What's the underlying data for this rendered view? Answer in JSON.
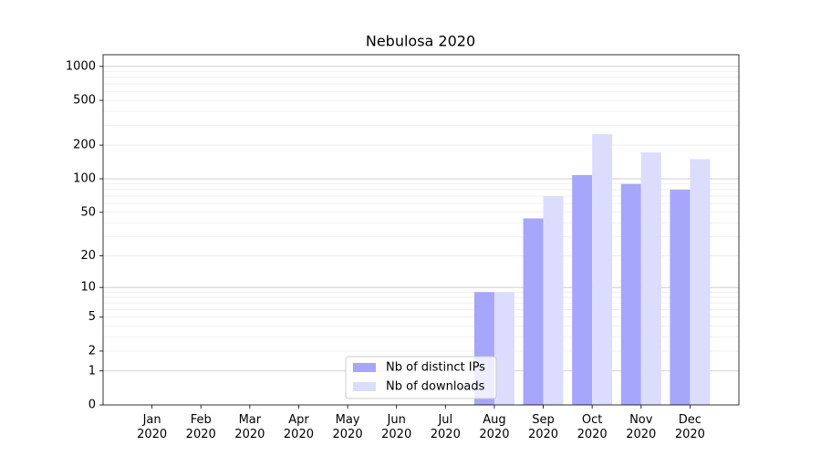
{
  "chart_data": {
    "type": "bar",
    "title": "Nebulosa 2020",
    "categories": [
      "Jan\n2020",
      "Feb\n2020",
      "Mar\n2020",
      "Apr\n2020",
      "May\n2020",
      "Jun\n2020",
      "Jul\n2020",
      "Aug\n2020",
      "Sep\n2020",
      "Oct\n2020",
      "Nov\n2020",
      "Dec\n2020"
    ],
    "series": [
      {
        "name": "Nb of distinct IPs",
        "color": "#a6a6fa",
        "values": [
          0,
          0,
          0,
          0,
          0,
          0,
          0,
          9,
          44,
          108,
          90,
          80
        ]
      },
      {
        "name": "Nb of downloads",
        "color": "#dcdcfd",
        "values": [
          0,
          0,
          0,
          0,
          0,
          0,
          0,
          9,
          70,
          250,
          172,
          150
        ]
      }
    ],
    "yscale": "log1p",
    "ylim": [
      0,
      1270
    ],
    "yticks": [
      0,
      1,
      2,
      5,
      10,
      20,
      50,
      100,
      200,
      500,
      1000
    ],
    "minor_yticks": [
      3,
      4,
      6,
      7,
      8,
      9,
      30,
      40,
      60,
      70,
      80,
      90,
      300,
      400,
      600,
      700,
      800,
      900
    ],
    "grid": true,
    "legend": "lower center"
  }
}
